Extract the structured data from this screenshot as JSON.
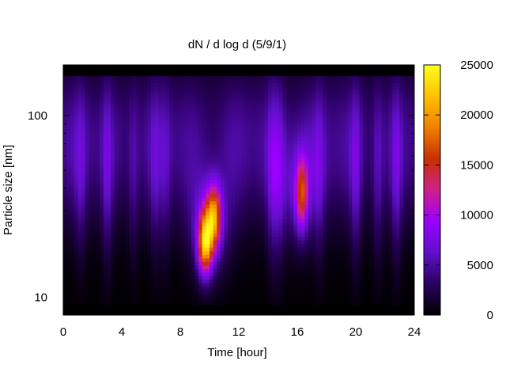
{
  "chart_data": {
    "type": "heatmap",
    "title": "dN / d log d (5/9/1)",
    "xlabel": "Time [hour]",
    "ylabel": "Particle size [nm]",
    "xlim": [
      0,
      24
    ],
    "ylim_nm": [
      8,
      190
    ],
    "y_scale": "log",
    "x_ticks": [
      0,
      4,
      8,
      12,
      16,
      20,
      24
    ],
    "x_ticks_minor": [
      2,
      6,
      10,
      14,
      18,
      22
    ],
    "x_tick_labels": [
      "0",
      "4",
      "8",
      "12",
      "16",
      "20",
      "24"
    ],
    "y_ticks": [
      10,
      100
    ],
    "y_tick_labels": [
      "10",
      "100"
    ],
    "colorbar": {
      "range": [
        0,
        25000
      ],
      "ticks": [
        0,
        5000,
        10000,
        15000,
        20000,
        25000
      ],
      "tick_labels": [
        "0",
        "5000",
        "10000",
        "15000",
        "20000",
        "25000"
      ],
      "palette": [
        "#000000",
        "#2a0060",
        "#6010c8",
        "#9a00ff",
        "#d0208a",
        "#c83000",
        "#f08000",
        "#ffc000",
        "#ffff20"
      ]
    },
    "grid": false,
    "legend": "colorbar-right",
    "approx_features": [
      {
        "time_hour": 9.8,
        "size_nm": 22,
        "value": 21000
      },
      {
        "time_hour": 10.2,
        "size_nm": 28,
        "value": 19000
      },
      {
        "time_hour": 16.3,
        "size_nm": 38,
        "value": 14000
      },
      {
        "time_hour": 3.0,
        "size_nm": 60,
        "value": 6000
      },
      {
        "time_hour": 14.5,
        "size_nm": 55,
        "value": 6500
      },
      {
        "time_hour": 20.0,
        "size_nm": 80,
        "value": 3500
      },
      {
        "time_hour": 21.5,
        "size_nm": 30,
        "value": 3000
      },
      {
        "time_hour": 22.8,
        "size_nm": 28,
        "value": 3500
      },
      {
        "background": "broad",
        "size_nm": 60,
        "value": 5000
      }
    ]
  }
}
